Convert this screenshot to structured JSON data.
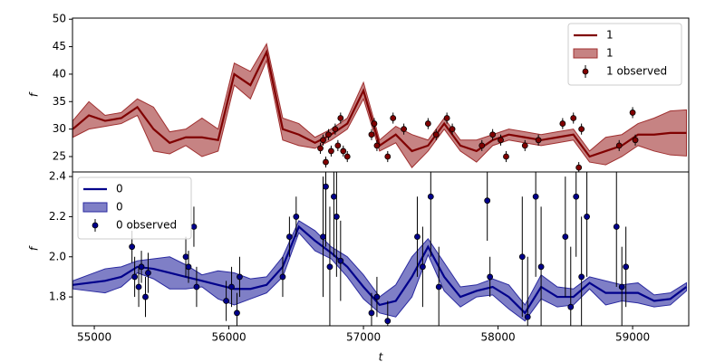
{
  "chart_data": [
    {
      "type": "line",
      "ylabel": "f",
      "legend": "upper right",
      "ylim": [
        22.2,
        50.2
      ],
      "yticks": [
        25,
        30,
        35,
        40,
        45,
        50
      ],
      "xlim": [
        54838,
        59417
      ],
      "x": [
        54840,
        54960,
        55080,
        55200,
        55320,
        55440,
        55560,
        55680,
        55800,
        55920,
        56040,
        56160,
        56280,
        56400,
        56520,
        56640,
        56760,
        56880,
        57000,
        57120,
        57240,
        57360,
        57480,
        57600,
        57720,
        57840,
        57960,
        58080,
        58200,
        58320,
        58440,
        58560,
        58680,
        58800,
        58920,
        59040,
        59160,
        59280,
        59400
      ],
      "series": [
        {
          "name": "1",
          "color": "#800000",
          "values": [
            30,
            32.5,
            31.5,
            32,
            34,
            30,
            27.5,
            28.5,
            28.5,
            28,
            40,
            38,
            44,
            30,
            29,
            27.5,
            29,
            31,
            37,
            27,
            29,
            26,
            27,
            31,
            27,
            26,
            28,
            29,
            28.5,
            28,
            28.5,
            29,
            25,
            26,
            27,
            29,
            29,
            29.3,
            29.3
          ]
        }
      ],
      "band": {
        "name": "1",
        "color": "#a03030",
        "lower": [
          28.5,
          30,
          30.5,
          31,
          32.5,
          26,
          25.5,
          27,
          25,
          26,
          38,
          35.5,
          42.5,
          28,
          27,
          26.5,
          28,
          30,
          35.5,
          26,
          27.5,
          23,
          26,
          30,
          26,
          24,
          27,
          28,
          27.5,
          27,
          27.5,
          28,
          24,
          23.5,
          25,
          27,
          26,
          25.3,
          25.1
        ],
        "upper": [
          31.5,
          35,
          32.5,
          33,
          35.5,
          34,
          29.5,
          30,
          32,
          30,
          42,
          40.5,
          45.5,
          32,
          31,
          28.5,
          30,
          32,
          38.5,
          28,
          30.5,
          29,
          28,
          32,
          28,
          28,
          29,
          30,
          29.5,
          29,
          29.5,
          30,
          26,
          28.5,
          29,
          31,
          32,
          33.3,
          33.5
        ]
      },
      "observed": {
        "name": "1 observed",
        "color": "#800000",
        "x": [
          56680,
          56700,
          56720,
          56740,
          56760,
          56790,
          56810,
          56830,
          56850,
          56880,
          57060,
          57080,
          57100,
          57180,
          57220,
          57300,
          57480,
          57540,
          57620,
          57660,
          57880,
          57960,
          58020,
          58060,
          58200,
          58300,
          58480,
          58560,
          58600,
          58620,
          58900,
          59000,
          59020
        ],
        "values": [
          26.5,
          28,
          24,
          29,
          26,
          30,
          27,
          32,
          26,
          25,
          29,
          31,
          27,
          25,
          32,
          30,
          31,
          29,
          32,
          30,
          27,
          29,
          28,
          25,
          27,
          28,
          31,
          32,
          23,
          30,
          27,
          33,
          28
        ],
        "errors": [
          1,
          1,
          1,
          1,
          1,
          1,
          1,
          1,
          1,
          1,
          1,
          1,
          1,
          1,
          1,
          1,
          1,
          1,
          1,
          1,
          1,
          1,
          1,
          1,
          1,
          1,
          1,
          1,
          1,
          1,
          1,
          1,
          1
        ]
      }
    },
    {
      "type": "line",
      "ylabel": "f",
      "xlabel": "t",
      "legend": "upper left",
      "ylim": [
        1.656,
        2.423
      ],
      "yticks": [
        1.8,
        {
          "value": 2,
          "label": "2.0"
        },
        2.2,
        2.4
      ],
      "xlim": [
        54838,
        59417
      ],
      "xticks": [
        55000,
        56000,
        57000,
        58000,
        59000
      ],
      "x": [
        54840,
        54960,
        55080,
        55200,
        55320,
        55440,
        55560,
        55680,
        55800,
        55920,
        56040,
        56160,
        56280,
        56400,
        56520,
        56640,
        56760,
        56880,
        57000,
        57120,
        57240,
        57360,
        57480,
        57600,
        57720,
        57840,
        57960,
        58080,
        58200,
        58320,
        58440,
        58560,
        58680,
        58800,
        58920,
        59040,
        59160,
        59280,
        59400
      ],
      "series": [
        {
          "name": "0",
          "color": "#00008b",
          "values": [
            1.86,
            1.87,
            1.88,
            1.9,
            1.95,
            1.94,
            1.92,
            1.9,
            1.88,
            1.86,
            1.84,
            1.84,
            1.86,
            1.95,
            2.15,
            2.08,
            2.02,
            1.95,
            1.85,
            1.76,
            1.78,
            1.9,
            2.05,
            1.9,
            1.8,
            1.83,
            1.85,
            1.8,
            1.72,
            1.85,
            1.8,
            1.8,
            1.87,
            1.82,
            1.82,
            1.82,
            1.78,
            1.79,
            1.85
          ]
        }
      ],
      "band": {
        "name": "0",
        "color": "#2a2aa0",
        "lower": [
          1.84,
          1.83,
          1.82,
          1.85,
          1.92,
          1.89,
          1.84,
          1.84,
          1.85,
          1.79,
          1.76,
          1.79,
          1.82,
          1.9,
          2.12,
          2.03,
          1.99,
          1.9,
          1.79,
          1.72,
          1.7,
          1.8,
          2.01,
          1.83,
          1.75,
          1.8,
          1.81,
          1.74,
          1.68,
          1.79,
          1.75,
          1.76,
          1.84,
          1.76,
          1.78,
          1.77,
          1.75,
          1.76,
          1.83
        ],
        "upper": [
          1.88,
          1.91,
          1.94,
          1.95,
          1.98,
          1.99,
          2,
          1.96,
          1.91,
          1.93,
          1.92,
          1.89,
          1.9,
          2,
          2.18,
          2.13,
          2.05,
          2,
          1.91,
          1.8,
          1.86,
          2,
          2.09,
          1.97,
          1.85,
          1.86,
          1.89,
          1.86,
          1.76,
          1.91,
          1.85,
          1.84,
          1.9,
          1.88,
          1.86,
          1.87,
          1.81,
          1.82,
          1.87
        ]
      },
      "observed": {
        "name": "0 observed",
        "color": "#00008b",
        "x": [
          55280,
          55300,
          55330,
          55350,
          55380,
          55400,
          55680,
          55700,
          55740,
          55760,
          55980,
          56020,
          56060,
          56080,
          56400,
          56450,
          56500,
          56700,
          56720,
          56750,
          56780,
          56800,
          56830,
          57060,
          57100,
          57180,
          57400,
          57440,
          57500,
          57560,
          57920,
          57940,
          58180,
          58220,
          58280,
          58320,
          58500,
          58540,
          58580,
          58620,
          58660,
          58880,
          58920,
          58950
        ],
        "values": [
          2.05,
          1.9,
          1.85,
          1.95,
          1.8,
          1.92,
          2,
          1.95,
          2.15,
          1.85,
          1.78,
          1.85,
          1.72,
          1.9,
          1.9,
          2.1,
          2.2,
          2.1,
          2.35,
          1.95,
          2.3,
          2.2,
          1.98,
          1.72,
          1.8,
          1.68,
          2.1,
          1.95,
          2.3,
          1.85,
          2.28,
          1.9,
          2,
          1.7,
          2.3,
          1.95,
          2.1,
          1.75,
          2.3,
          1.9,
          2.2,
          2.15,
          1.85,
          1.95
        ],
        "errors": [
          0.08,
          0.1,
          0.1,
          0.08,
          0.1,
          0.1,
          0.1,
          0.08,
          0.1,
          0.1,
          0.1,
          0.1,
          0.1,
          0.1,
          0.1,
          0.1,
          0.1,
          0.3,
          0.3,
          0.3,
          0.3,
          0.3,
          0.2,
          0.1,
          0.1,
          0.1,
          0.2,
          0.2,
          0.3,
          0.2,
          0.2,
          0.1,
          0.3,
          0.3,
          0.4,
          0.3,
          0.3,
          0.3,
          0.3,
          0.3,
          0.3,
          0.3,
          0.2,
          0.2
        ]
      }
    }
  ]
}
